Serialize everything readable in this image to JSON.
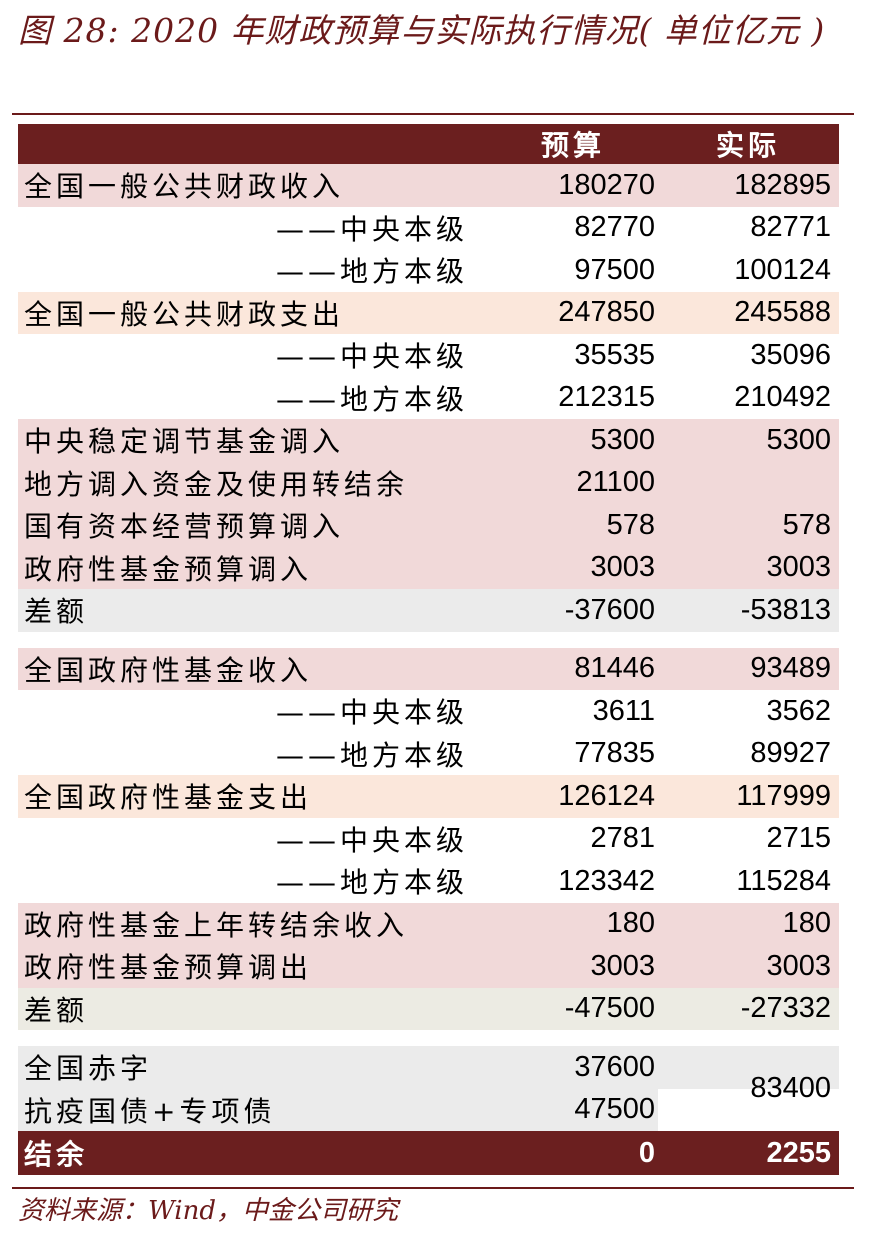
{
  "title": "图 28: 2020 年财政预算与实际执行情况( 单位亿元 )",
  "source": "资料来源：Wind，中金公司研究",
  "header": {
    "col1": "预算",
    "col2": "实际"
  },
  "rows": [
    {
      "label": "全国一般公共财政收入",
      "v1": "180270",
      "v2": "182895"
    },
    {
      "label": "——中央本级",
      "v1": "82770",
      "v2": "82771"
    },
    {
      "label": "——地方本级",
      "v1": "97500",
      "v2": "100124"
    },
    {
      "label": "全国一般公共财政支出",
      "v1": "247850",
      "v2": "245588"
    },
    {
      "label": "——中央本级",
      "v1": "35535",
      "v2": "35096"
    },
    {
      "label": "——地方本级",
      "v1": "212315",
      "v2": "210492"
    },
    {
      "label": "中央稳定调节基金调入",
      "v1": "5300",
      "v2": "5300"
    },
    {
      "label": "地方调入资金及使用转结余",
      "v1": "21100",
      "v2": ""
    },
    {
      "label": "国有资本经营预算调入",
      "v1": "578",
      "v2": "578"
    },
    {
      "label": "政府性基金预算调入",
      "v1": "3003",
      "v2": "3003"
    },
    {
      "label": "差额",
      "v1": "-37600",
      "v2": "-53813"
    },
    {
      "label": "全国政府性基金收入",
      "v1": "81446",
      "v2": "93489"
    },
    {
      "label": "——中央本级",
      "v1": "3611",
      "v2": "3562"
    },
    {
      "label": "——地方本级",
      "v1": "77835",
      "v2": "89927"
    },
    {
      "label": "全国政府性基金支出",
      "v1": "126124",
      "v2": "117999"
    },
    {
      "label": "——中央本级",
      "v1": "2781",
      "v2": "2715"
    },
    {
      "label": "——地方本级",
      "v1": "123342",
      "v2": "115284"
    },
    {
      "label": "政府性基金上年转结余收入",
      "v1": "180",
      "v2": "180"
    },
    {
      "label": "政府性基金预算调出",
      "v1": "3003",
      "v2": "3003"
    },
    {
      "label": "差额",
      "v1": "-47500",
      "v2": "-27332"
    },
    {
      "label": "全国赤字",
      "v1": "37600"
    },
    {
      "label": "抗疫国债+专项债",
      "v1": "47500"
    },
    {
      "label": "结余",
      "v1": "0",
      "v2": "2255"
    }
  ],
  "merged_actual": "83400"
}
